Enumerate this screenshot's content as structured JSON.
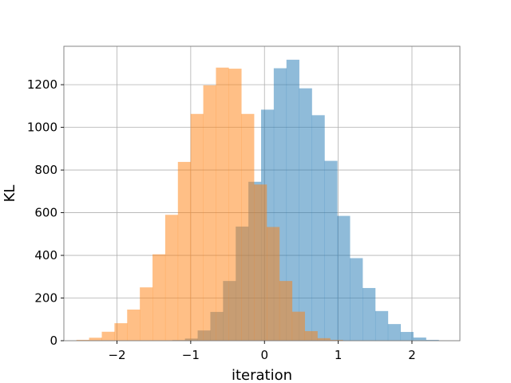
{
  "chart_data": {
    "type": "bar",
    "subtype": "overlapping-histogram",
    "xlabel": "iteration",
    "ylabel": "KL",
    "xlim": [
      -2.72,
      2.65
    ],
    "ylim": [
      0,
      1380
    ],
    "xticks": [
      -2,
      -1,
      0,
      1,
      2
    ],
    "xtick_labels": [
      "−2",
      "−1",
      "0",
      "1",
      "2"
    ],
    "yticks": [
      0,
      200,
      400,
      600,
      800,
      1000,
      1200
    ],
    "ytick_labels": [
      "0",
      "200",
      "400",
      "600",
      "800",
      "1000",
      "1200"
    ],
    "grid": true,
    "legend": "none",
    "series": [
      {
        "color": "#1f77b4",
        "alpha": 0.5,
        "bin_start": -1.25,
        "bin_width": 0.172,
        "values": [
          3,
          10,
          48,
          135,
          280,
          535,
          745,
          1083,
          1277,
          1317,
          1183,
          1057,
          843,
          585,
          387,
          247,
          139,
          78,
          41,
          15,
          4
        ]
      },
      {
        "color": "#ff7f0e",
        "alpha": 0.5,
        "bin_start": -2.55,
        "bin_width": 0.172,
        "values": [
          4,
          14,
          42,
          82,
          146,
          250,
          405,
          590,
          838,
          1063,
          1197,
          1280,
          1275,
          1063,
          732,
          533,
          280,
          136,
          45,
          12,
          4
        ]
      }
    ]
  }
}
